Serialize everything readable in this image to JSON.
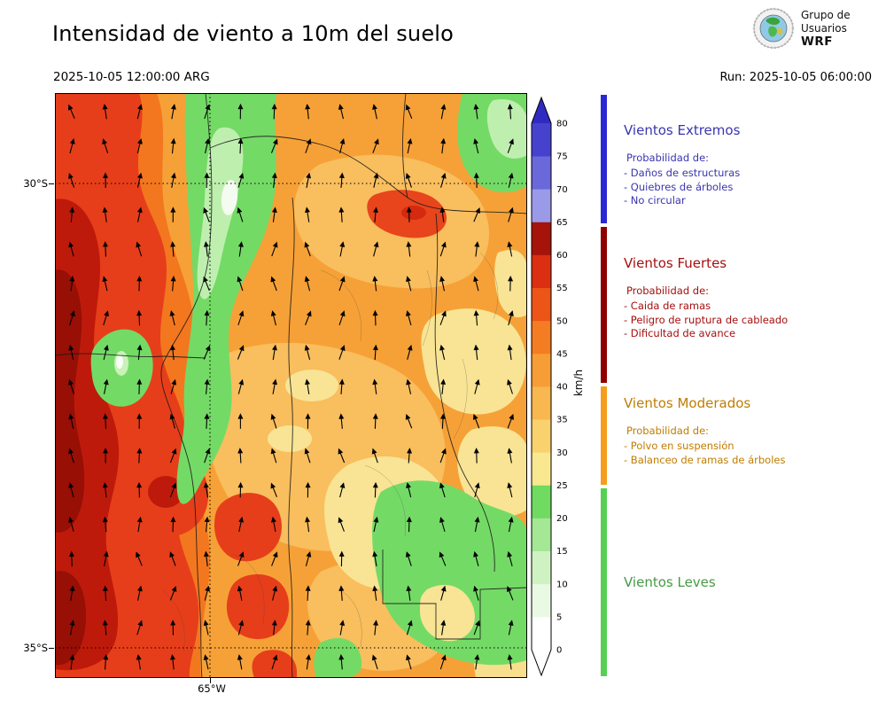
{
  "header": {
    "title": "Intensidad de viento a 10m del suelo",
    "valid_datetime": "2025-10-05 12:00:00 ARG",
    "run_label": "Run: 2025-10-05 06:00:00",
    "logo": {
      "line1": "Grupo de",
      "line2": "Usuarios",
      "line3": "WRF"
    }
  },
  "map": {
    "lat_ticks": [
      "30°S",
      "35°S"
    ],
    "lon_ticks": [
      "65°W"
    ]
  },
  "colorbar": {
    "unit": "km/h",
    "ticks": [
      "0",
      "5",
      "10",
      "15",
      "20",
      "25",
      "30",
      "35",
      "40",
      "45",
      "50",
      "55",
      "60",
      "65",
      "70",
      "75",
      "80"
    ],
    "segment_colors_bottom_to_top": [
      "#ffffff",
      "#e9f9e3",
      "#cff2c2",
      "#a4e794",
      "#70db60",
      "#f9e88f",
      "#f9d26e",
      "#f8b74f",
      "#f69d36",
      "#f47c22",
      "#ec5418",
      "#dc2f12",
      "#a6130a",
      "#9b9ae8",
      "#6b68da",
      "#4642ce"
    ],
    "extend_top_color": "#2f2bc0",
    "extend_bottom_color": "#ffffff"
  },
  "legend": {
    "sections": [
      {
        "title": "Vientos Extremos",
        "color": "#3a35b0",
        "bar_color": "#2a28d4",
        "subtitle": "Probabilidad de:",
        "items": [
          "- Daños de estructuras",
          "- Quiebres de árboles",
          "- No circular"
        ]
      },
      {
        "title": "Vientos Fuertes",
        "color": "#a50f0f",
        "bar_color": "#8e0000",
        "subtitle": "Probabilidad de:",
        "items": [
          "- Caida de ramas",
          "- Peligro de ruptura de cableado",
          "- Dificultad de avance"
        ]
      },
      {
        "title": "Vientos Moderados",
        "color": "#bf7d00",
        "bar_color": "#f59e1e",
        "subtitle": "Probabilidad de:",
        "items": [
          "- Polvo en suspensión",
          "- Balanceo de ramas de árboles"
        ]
      },
      {
        "title": "Vientos Leves",
        "color": "#459a45",
        "bar_color": "#55d055",
        "subtitle": "",
        "items": []
      }
    ]
  }
}
